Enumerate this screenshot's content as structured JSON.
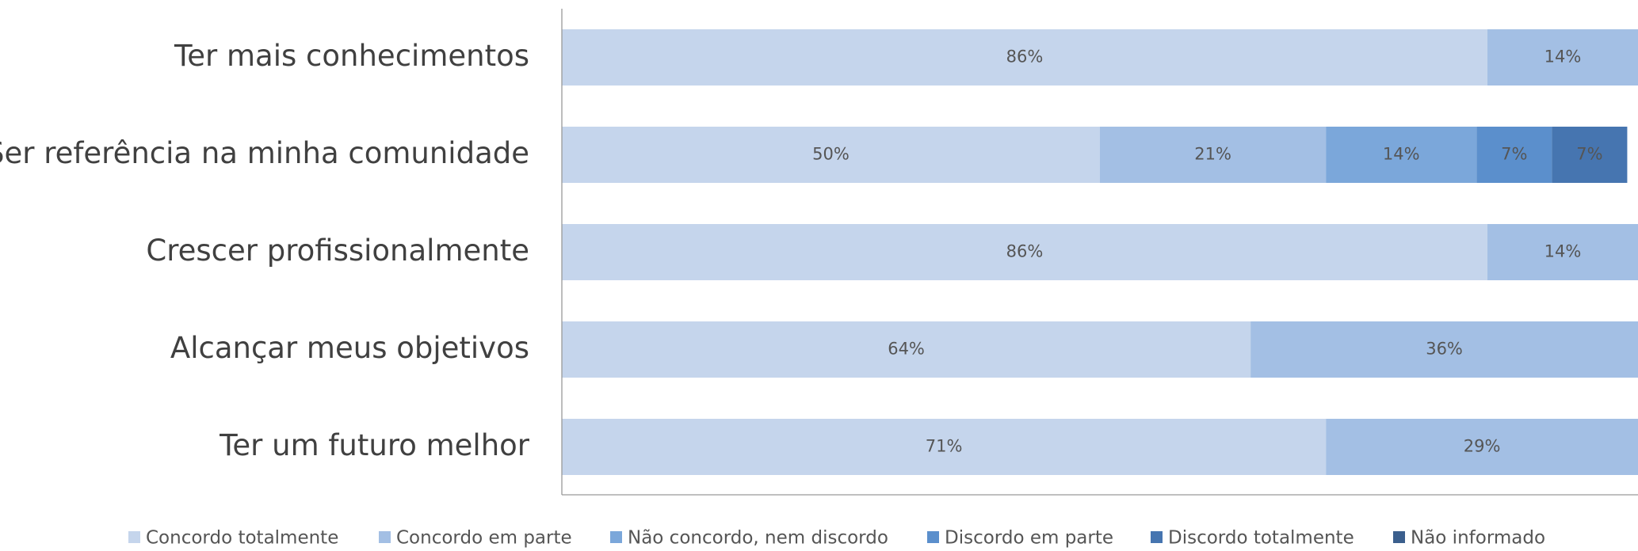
{
  "chart_data": {
    "type": "stacked-bar-horizontal",
    "categories": [
      "Ter mais conhecimentos",
      "Ser referência na minha comunidade",
      "Crescer profissionalmente",
      "Alcançar meus objetivos",
      "Ter um futuro melhor"
    ],
    "xlim": [
      0,
      100
    ],
    "legend": "bottom",
    "series": [
      {
        "name": "Concordo totalmente",
        "color": "#c5d5ec",
        "values": [
          86,
          50,
          86,
          64,
          71
        ],
        "value_labels": [
          "86%",
          "50%",
          "86%",
          "64%",
          "71%"
        ]
      },
      {
        "name": "Concordo em parte",
        "color": "#a3bfe4",
        "values": [
          14,
          21,
          14,
          36,
          29
        ],
        "value_labels": [
          "14%",
          "21%",
          "14%",
          "36%",
          "29%"
        ]
      },
      {
        "name": "Não concordo, nem discordo",
        "color": "#7ba7da",
        "values": [
          null,
          14,
          null,
          null,
          null
        ],
        "value_labels": [
          null,
          "14%",
          null,
          null,
          null
        ]
      },
      {
        "name": "Discordo em parte",
        "color": "#5b8fcc",
        "values": [
          null,
          7,
          null,
          null,
          null
        ],
        "value_labels": [
          null,
          "7%",
          null,
          null,
          null
        ]
      },
      {
        "name": "Discordo totalmente",
        "color": "#4675b0",
        "values": [
          null,
          7,
          null,
          null,
          null
        ],
        "value_labels": [
          null,
          "7%",
          null,
          null,
          null
        ]
      },
      {
        "name": "Não informado",
        "color": "#3b5f8d",
        "values": [
          null,
          null,
          null,
          null,
          null
        ],
        "value_labels": [
          null,
          null,
          null,
          null,
          null
        ]
      }
    ]
  }
}
